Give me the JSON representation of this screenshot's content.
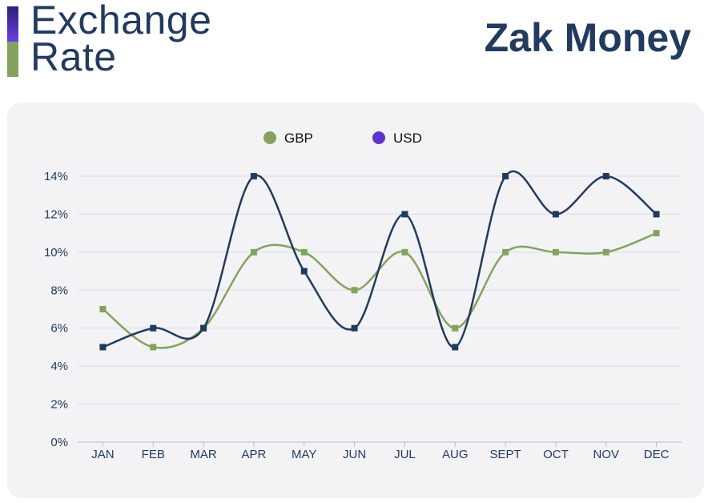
{
  "header": {
    "title_line1": "Exchange",
    "title_line2": "Rate",
    "brand": "Zak Money"
  },
  "colors": {
    "gbp": "#84a35e",
    "usd": "#223a5e",
    "usd_legend": "#5b35cc",
    "grid": "#dcdce2",
    "text": "#223a5e"
  },
  "chart_data": {
    "type": "line",
    "categories": [
      "JAN",
      "FEB",
      "MAR",
      "APR",
      "MAY",
      "JUN",
      "JUL",
      "AUG",
      "SEPT",
      "OCT",
      "NOV",
      "DEC"
    ],
    "series": [
      {
        "name": "GBP",
        "values": [
          7,
          5,
          6,
          10,
          10,
          8,
          10,
          6,
          10,
          10,
          10,
          11
        ]
      },
      {
        "name": "USD",
        "values": [
          5,
          6,
          6,
          14,
          9,
          6,
          12,
          5,
          14,
          12,
          14,
          12
        ]
      }
    ],
    "yticks": [
      "0%",
      "2%",
      "4%",
      "6%",
      "8%",
      "10%",
      "12%",
      "14%"
    ],
    "ylim": [
      0,
      14
    ],
    "legend_position": "top-center",
    "grid": true
  }
}
